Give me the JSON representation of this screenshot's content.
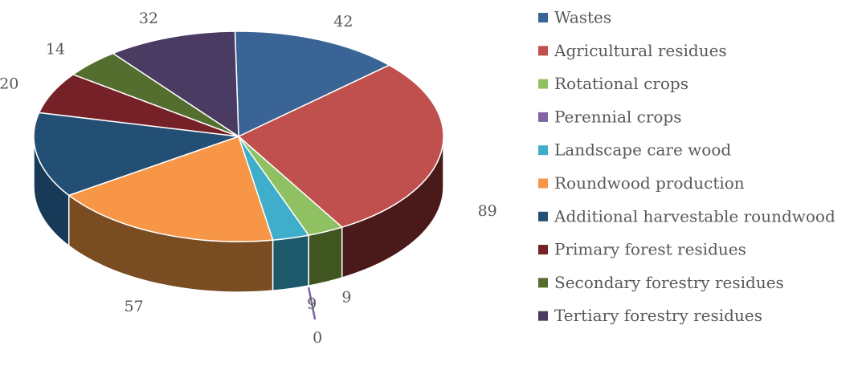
{
  "chart_data": {
    "type": "pie",
    "style": "3d-pie",
    "title": "",
    "legend_position": "right",
    "slices": [
      {
        "label": "Wastes",
        "value": 42,
        "color": "#3a6495",
        "side_color": "#233d5c"
      },
      {
        "label": "Agricultural residues",
        "value": 89,
        "color": "#c0504d",
        "side_color": "#4a1a1a"
      },
      {
        "label": "Rotational crops",
        "value": 9,
        "color": "#8fc163",
        "side_color": "#3f5621"
      },
      {
        "label": "Perennial crops",
        "value": 0,
        "color": "#8064a2",
        "side_color": "#4b3a63"
      },
      {
        "label": "Landscape care wood",
        "value": 9,
        "color": "#3faecb",
        "side_color": "#1c5a6b"
      },
      {
        "label": "Roundwood production",
        "value": 57,
        "color": "#f79646",
        "side_color": "#7a4c22"
      },
      {
        "label": "Additional harvestable roundwood",
        "value": 41,
        "color": "#244f75",
        "side_color": "#173a58"
      },
      {
        "label": "Primary forest residues",
        "value": 20,
        "color": "#762127",
        "side_color": "#4a1418"
      },
      {
        "label": "Secondary forestry residues",
        "value": 14,
        "color": "#536e2e",
        "side_color": "#334619"
      },
      {
        "label": "Tertiary forestry residues",
        "value": 32,
        "color": "#4a3b63",
        "side_color": "#2d2340"
      }
    ]
  }
}
